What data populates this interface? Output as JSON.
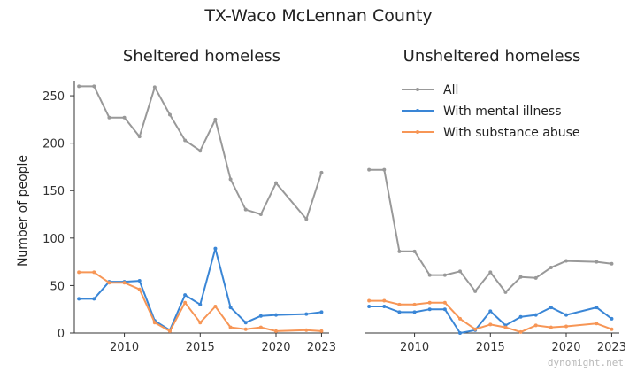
{
  "title": "TX-Waco McLennan County",
  "watermark": "dynomight.net",
  "colors": {
    "All": "#999999",
    "With mental illness": "#3a86d6",
    "With substance abuse": "#f79656",
    "axis": "#333333"
  },
  "chart_data": [
    {
      "type": "line",
      "title": "Sheltered homeless",
      "ylabel": "Number of people",
      "xlabel": "",
      "xlim": [
        2006.7,
        2023.5
      ],
      "ylim": [
        0,
        265
      ],
      "xticks": [
        2010,
        2015,
        2020,
        2023
      ],
      "yticks": [
        0,
        50,
        100,
        150,
        200,
        250
      ],
      "grid": false,
      "series": [
        {
          "name": "All",
          "x": [
            2007,
            2008,
            2009,
            2010,
            2011,
            2012,
            2013,
            2014,
            2015,
            2016,
            2017,
            2018,
            2019,
            2020,
            2022,
            2023
          ],
          "y": [
            260,
            260,
            227,
            227,
            207,
            259,
            230,
            203,
            192,
            225,
            162,
            130,
            125,
            158,
            120,
            169
          ]
        },
        {
          "name": "With mental illness",
          "x": [
            2007,
            2008,
            2009,
            2010,
            2011,
            2012,
            2013,
            2014,
            2015,
            2016,
            2017,
            2018,
            2019,
            2020,
            2022,
            2023
          ],
          "y": [
            36,
            36,
            54,
            54,
            55,
            13,
            3,
            40,
            30,
            89,
            27,
            11,
            18,
            19,
            20,
            22
          ]
        },
        {
          "name": "With substance abuse",
          "x": [
            2007,
            2008,
            2009,
            2010,
            2011,
            2012,
            2013,
            2014,
            2015,
            2016,
            2017,
            2018,
            2019,
            2020,
            2022,
            2023
          ],
          "y": [
            64,
            64,
            53,
            53,
            46,
            11,
            2,
            32,
            11,
            28,
            6,
            4,
            6,
            2,
            3,
            2
          ]
        }
      ]
    },
    {
      "type": "line",
      "title": "Unsheltered homeless",
      "ylabel": "",
      "xlabel": "",
      "xlim": [
        2006.7,
        2023.5
      ],
      "ylim": [
        0,
        265
      ],
      "xticks": [
        2010,
        2015,
        2020,
        2023
      ],
      "yticks": [],
      "grid": false,
      "legend": "top-right",
      "series": [
        {
          "name": "All",
          "x": [
            2007,
            2008,
            2009,
            2010,
            2011,
            2012,
            2013,
            2014,
            2015,
            2016,
            2017,
            2018,
            2019,
            2020,
            2022,
            2023
          ],
          "y": [
            172,
            172,
            86,
            86,
            61,
            61,
            65,
            44,
            64,
            43,
            59,
            58,
            69,
            76,
            75,
            73
          ]
        },
        {
          "name": "With mental illness",
          "x": [
            2007,
            2008,
            2009,
            2010,
            2011,
            2012,
            2013,
            2014,
            2015,
            2016,
            2017,
            2018,
            2019,
            2020,
            2022,
            2023
          ],
          "y": [
            28,
            28,
            22,
            22,
            25,
            25,
            0,
            3,
            23,
            8,
            17,
            19,
            27,
            19,
            27,
            15
          ]
        },
        {
          "name": "With substance abuse",
          "x": [
            2007,
            2008,
            2009,
            2010,
            2011,
            2012,
            2013,
            2014,
            2015,
            2016,
            2017,
            2018,
            2019,
            2020,
            2022,
            2023
          ],
          "y": [
            34,
            34,
            30,
            30,
            32,
            32,
            15,
            4,
            9,
            6,
            1,
            8,
            6,
            7,
            10,
            4
          ]
        }
      ]
    }
  ]
}
